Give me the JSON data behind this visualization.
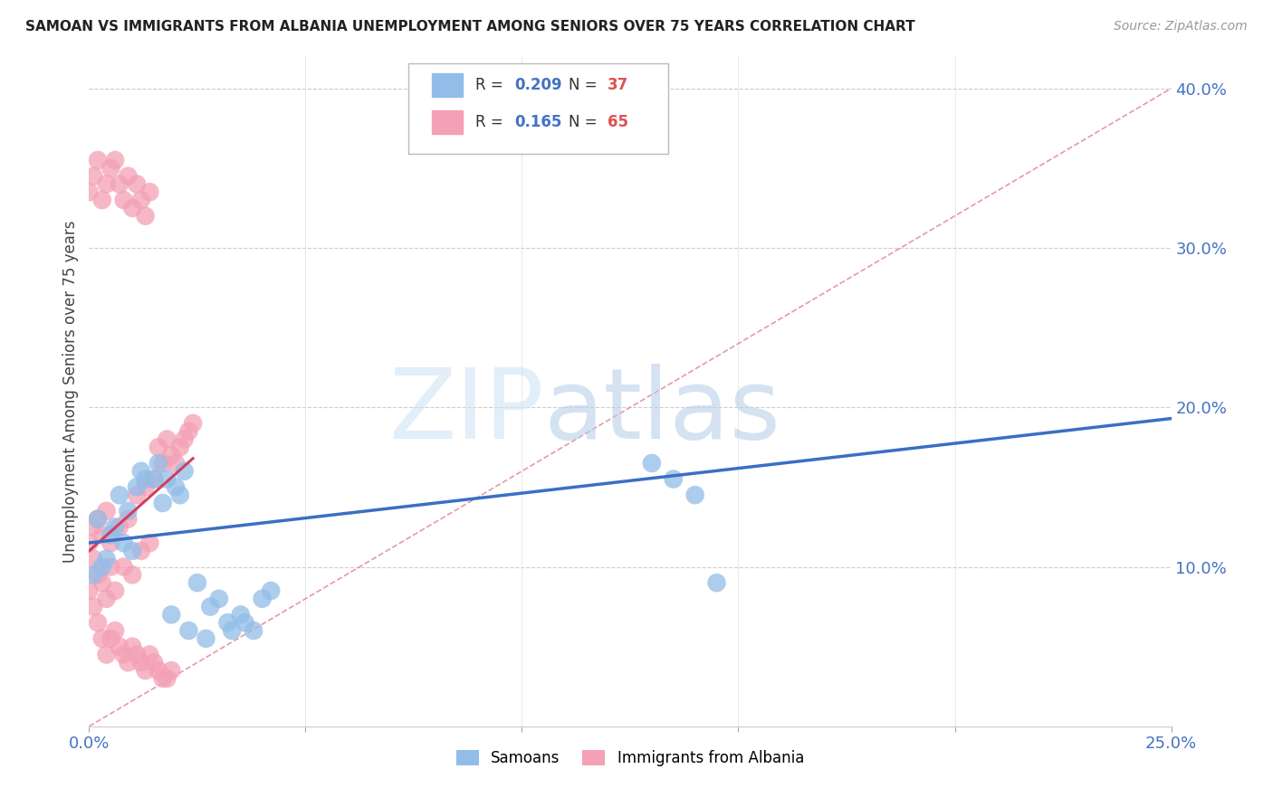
{
  "title": "SAMOAN VS IMMIGRANTS FROM ALBANIA UNEMPLOYMENT AMONG SENIORS OVER 75 YEARS CORRELATION CHART",
  "source": "Source: ZipAtlas.com",
  "ylabel": "Unemployment Among Seniors over 75 years",
  "xlim": [
    0,
    0.25
  ],
  "ylim": [
    0,
    0.42
  ],
  "ytick_vals": [
    0.1,
    0.2,
    0.3,
    0.4
  ],
  "ytick_labels": [
    "10.0%",
    "20.0%",
    "30.0%",
    "40.0%"
  ],
  "xtick_vals": [
    0.0,
    0.05,
    0.1,
    0.15,
    0.2,
    0.25
  ],
  "xtick_labels": [
    "0.0%",
    "",
    "",
    "",
    "",
    "25.0%"
  ],
  "legend_labels": [
    "Samoans",
    "Immigrants from Albania"
  ],
  "samoan_R": 0.209,
  "samoan_N": 37,
  "albania_R": 0.165,
  "albania_N": 65,
  "samoan_color": "#92bde8",
  "albania_color": "#f4a0b5",
  "samoan_line_color": "#3a6fc4",
  "albania_line_color": "#d04060",
  "diagonal_color": "#e08090",
  "watermark_zip_color": "#d0e4f4",
  "watermark_atlas_color": "#b8d0e8",
  "samoan_x": [
    0.002,
    0.005,
    0.007,
    0.008,
    0.009,
    0.01,
    0.011,
    0.012,
    0.013,
    0.015,
    0.016,
    0.017,
    0.018,
    0.02,
    0.021,
    0.022,
    0.025,
    0.028,
    0.03,
    0.032,
    0.035,
    0.038,
    0.04,
    0.042,
    0.13,
    0.135,
    0.14,
    0.145,
    0.001,
    0.003,
    0.004,
    0.006,
    0.019,
    0.023,
    0.027,
    0.033,
    0.036
  ],
  "samoan_y": [
    0.13,
    0.12,
    0.145,
    0.115,
    0.135,
    0.11,
    0.15,
    0.16,
    0.155,
    0.155,
    0.165,
    0.14,
    0.155,
    0.15,
    0.145,
    0.16,
    0.09,
    0.075,
    0.08,
    0.065,
    0.07,
    0.06,
    0.08,
    0.085,
    0.165,
    0.155,
    0.145,
    0.09,
    0.095,
    0.1,
    0.105,
    0.125,
    0.07,
    0.06,
    0.055,
    0.06,
    0.065
  ],
  "albania_x": [
    0.0,
    0.001,
    0.001,
    0.002,
    0.002,
    0.003,
    0.003,
    0.004,
    0.004,
    0.005,
    0.005,
    0.006,
    0.007,
    0.008,
    0.009,
    0.01,
    0.011,
    0.012,
    0.013,
    0.014,
    0.015,
    0.016,
    0.017,
    0.018,
    0.019,
    0.02,
    0.021,
    0.022,
    0.023,
    0.024,
    0.0,
    0.001,
    0.002,
    0.003,
    0.004,
    0.005,
    0.006,
    0.007,
    0.008,
    0.009,
    0.01,
    0.011,
    0.012,
    0.013,
    0.014,
    0.015,
    0.016,
    0.017,
    0.018,
    0.019,
    0.0,
    0.001,
    0.002,
    0.003,
    0.004,
    0.005,
    0.006,
    0.007,
    0.008,
    0.009,
    0.01,
    0.011,
    0.012,
    0.013,
    0.014
  ],
  "albania_y": [
    0.115,
    0.105,
    0.125,
    0.095,
    0.13,
    0.09,
    0.12,
    0.08,
    0.135,
    0.1,
    0.115,
    0.085,
    0.125,
    0.1,
    0.13,
    0.095,
    0.145,
    0.11,
    0.15,
    0.115,
    0.155,
    0.175,
    0.165,
    0.18,
    0.17,
    0.165,
    0.175,
    0.18,
    0.185,
    0.19,
    0.085,
    0.075,
    0.065,
    0.055,
    0.045,
    0.055,
    0.06,
    0.05,
    0.045,
    0.04,
    0.05,
    0.045,
    0.04,
    0.035,
    0.045,
    0.04,
    0.035,
    0.03,
    0.03,
    0.035,
    0.335,
    0.345,
    0.355,
    0.33,
    0.34,
    0.35,
    0.355,
    0.34,
    0.33,
    0.345,
    0.325,
    0.34,
    0.33,
    0.32,
    0.335
  ],
  "samoan_line_x0": 0.0,
  "samoan_line_x1": 0.25,
  "samoan_line_y0": 0.115,
  "samoan_line_y1": 0.193,
  "albania_line_x0": 0.0,
  "albania_line_x1": 0.024,
  "albania_line_y0": 0.11,
  "albania_line_y1": 0.168
}
